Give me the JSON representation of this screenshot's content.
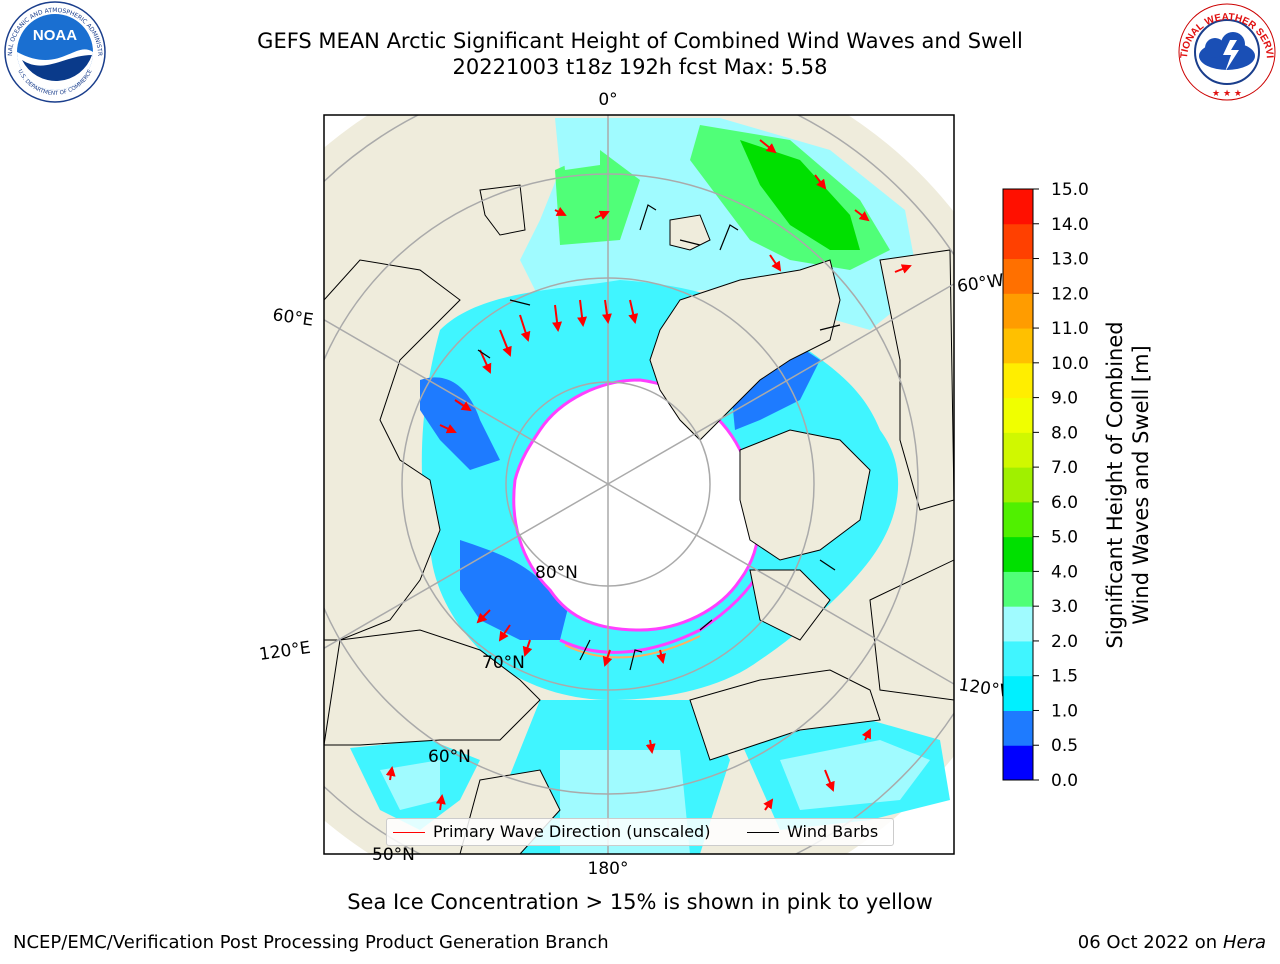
{
  "title_line1": "GEFS MEAN Arctic Significant Height of Combined Wind Waves and Swell",
  "title_line2": "20221003 t18z 192h fcst   Max: 5.58",
  "map_labels": {
    "lon_0": "0°",
    "lon_60w": "60°W",
    "lon_60e": "60°E",
    "lon_120e": "120°E",
    "lon_120w": "120°W",
    "lon_180": "180°",
    "lat_80": "80°N",
    "lat_70": "70°N",
    "lat_60": "60°N",
    "lat_50": "50°N"
  },
  "legend": {
    "primary_wave": "Primary Wave Direction (unscaled)",
    "wind_barbs": "Wind Barbs"
  },
  "colorbar": {
    "label_line1": "Significant Height of Combined",
    "label_line2": "Wind Waves and Swell [m]",
    "ticks": [
      "0.0",
      "0.5",
      "1.0",
      "1.5",
      "2.0",
      "3.0",
      "4.0",
      "5.0",
      "6.0",
      "7.0",
      "8.0",
      "9.0",
      "10.0",
      "11.0",
      "12.0",
      "13.0",
      "14.0",
      "15.0"
    ],
    "colors": [
      "#0000ff",
      "#1e7bff",
      "#00f0ff",
      "#40f5ff",
      "#a0fbff",
      "#50ff78",
      "#00e000",
      "#50f000",
      "#a0f000",
      "#d0f800",
      "#f0ff00",
      "#ffee00",
      "#ffc000",
      "#ff9c00",
      "#ff7000",
      "#ff4000",
      "#ff1000"
    ]
  },
  "caption": "Sea Ice Concentration > 15% is shown in pink to yellow",
  "footer_left": "NCEP/EMC/Verification Post Processing Product Generation Branch",
  "footer_date": "06 Oct 2022 on",
  "footer_host": "Hera",
  "noaa_logo_text": "NOAA",
  "noaa_seal_text": "NATIONAL OCEANIC AND ATMOSPHERIC ADMINISTRATION",
  "noaa_seal_bottom": "U.S. DEPARTMENT OF COMMERCE",
  "nws_seal_text": "NATIONAL WEATHER SERVICE",
  "colors": {
    "land": "#efecdc",
    "ice": "#ffffff",
    "grid": "#aaaaaa",
    "arrow": "#ff0000",
    "barb": "#000000",
    "ice_edge": "#ff40ff"
  }
}
